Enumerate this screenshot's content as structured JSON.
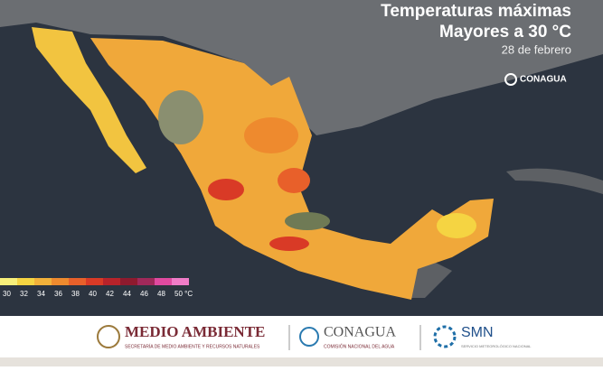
{
  "header": {
    "title": "Temperaturas máximas",
    "subtitle": "Mayores a 30 °C",
    "date": "28 de febrero",
    "logo": "CONAGUA"
  },
  "legend": [
    {
      "label": "30",
      "color": "#f7ef7a"
    },
    {
      "label": "32",
      "color": "#f5d442"
    },
    {
      "label": "34",
      "color": "#f2b13a"
    },
    {
      "label": "36",
      "color": "#ee8a2e"
    },
    {
      "label": "38",
      "color": "#e8602a"
    },
    {
      "label": "40",
      "color": "#d93a26"
    },
    {
      "label": "42",
      "color": "#b8232a"
    },
    {
      "label": "44",
      "color": "#8e1a2e"
    },
    {
      "label": "46",
      "color": "#a0295a"
    },
    {
      "label": "48",
      "color": "#e04aa0"
    },
    {
      "label": "50 °C",
      "color": "#f07cc8"
    }
  ],
  "footer": {
    "logos": [
      {
        "name": "MEDIO AMBIENTE",
        "caption": "SECRETARÍA DE MEDIO AMBIENTE Y RECURSOS NATURALES"
      },
      {
        "name": "CONAGUA",
        "caption": "COMISIÓN NACIONAL DEL AGUA"
      },
      {
        "name": "SMN",
        "caption": "SERVICIO METEOROLÓGICO NACIONAL"
      }
    ]
  }
}
